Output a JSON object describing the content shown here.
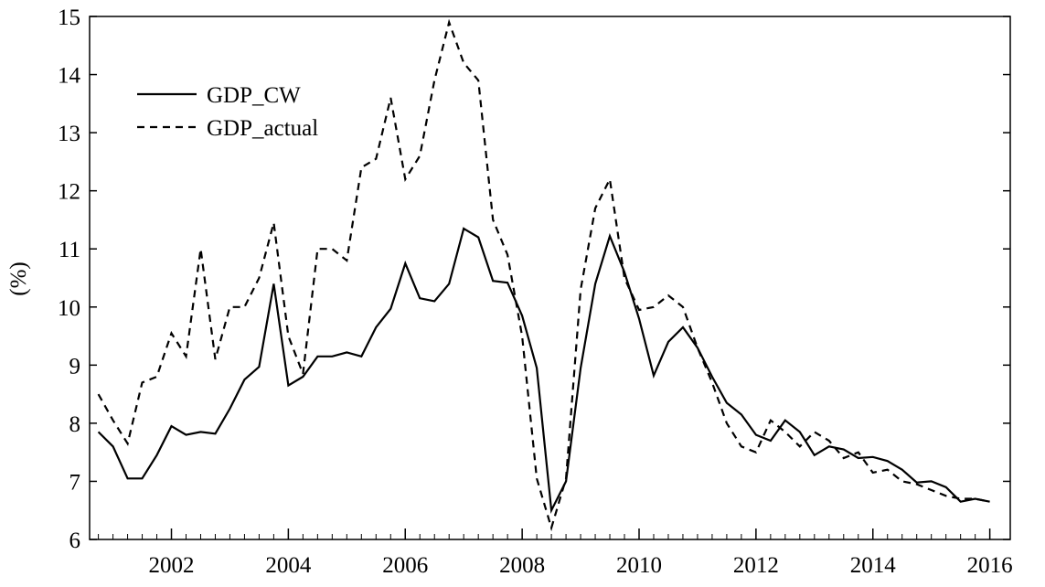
{
  "chart_data": {
    "type": "line",
    "y_label": "(%)",
    "x": [
      2000.75,
      2001,
      2001.25,
      2001.5,
      2001.75,
      2002,
      2002.25,
      2002.5,
      2002.75,
      2003,
      2003.25,
      2003.5,
      2003.75,
      2004,
      2004.25,
      2004.5,
      2004.75,
      2005,
      2005.25,
      2005.5,
      2005.75,
      2006,
      2006.25,
      2006.5,
      2006.75,
      2007,
      2007.25,
      2007.5,
      2007.75,
      2008,
      2008.25,
      2008.5,
      2008.75,
      2009,
      2009.25,
      2009.5,
      2009.75,
      2010,
      2010.25,
      2010.5,
      2010.75,
      2011,
      2011.25,
      2011.5,
      2011.75,
      2012,
      2012.25,
      2012.5,
      2012.75,
      2013,
      2013.25,
      2013.5,
      2013.75,
      2014,
      2014.25,
      2014.5,
      2014.75,
      2015,
      2015.25,
      2015.5,
      2015.75,
      2016
    ],
    "series": [
      {
        "name": "GDP_CW",
        "color": "#000000",
        "style": "solid",
        "values": [
          7.85,
          7.6,
          7.05,
          7.05,
          7.45,
          7.95,
          7.8,
          7.85,
          7.82,
          8.25,
          8.75,
          8.97,
          10.4,
          8.65,
          8.8,
          9.15,
          9.15,
          9.22,
          9.15,
          9.65,
          9.97,
          10.75,
          10.15,
          10.1,
          10.4,
          11.35,
          11.2,
          10.45,
          10.42,
          9.85,
          8.95,
          6.5,
          7.0,
          8.95,
          10.4,
          11.22,
          10.6,
          9.8,
          8.82,
          9.4,
          9.65,
          9.3,
          8.8,
          8.35,
          8.15,
          7.8,
          7.7,
          8.05,
          7.85,
          7.45,
          7.6,
          7.55,
          7.4,
          7.42,
          7.35,
          7.2,
          6.98,
          7.0,
          6.9,
          6.65,
          6.7,
          6.65
        ]
      },
      {
        "name": "GDP_actual",
        "color": "#000000",
        "style": "dashed",
        "values": [
          8.5,
          8.05,
          7.65,
          8.7,
          8.8,
          9.55,
          9.15,
          11.0,
          9.1,
          10.0,
          10.0,
          10.5,
          11.45,
          9.5,
          8.85,
          11.0,
          11.0,
          10.8,
          12.4,
          12.55,
          13.6,
          12.2,
          12.6,
          13.9,
          14.9,
          14.2,
          13.9,
          11.5,
          10.9,
          9.5,
          7.05,
          6.2,
          7.05,
          10.3,
          11.7,
          12.2,
          10.5,
          9.95,
          10.0,
          10.2,
          10.0,
          9.3,
          8.7,
          8.0,
          7.6,
          7.5,
          8.05,
          7.85,
          7.6,
          7.85,
          7.7,
          7.4,
          7.5,
          7.15,
          7.2,
          7.0,
          6.95,
          6.85,
          6.75,
          6.7,
          6.7,
          6.65
        ]
      }
    ],
    "xlim": [
      2000.6,
      2016.35
    ],
    "xticks": [
      2002,
      2004,
      2006,
      2008,
      2010,
      2012,
      2014,
      2016
    ],
    "ylim": [
      6,
      15
    ],
    "yticks": [
      6,
      7,
      8,
      9,
      10,
      11,
      12,
      13,
      14,
      15
    ],
    "legend": "upper left",
    "grid": false
  }
}
